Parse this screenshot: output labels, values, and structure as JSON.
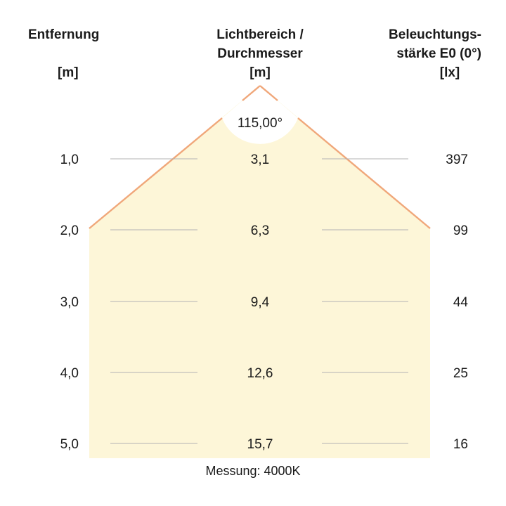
{
  "headers": {
    "distance": {
      "line1": "Entfernung",
      "unit": "[m]"
    },
    "beam": {
      "line1": "Lichtbereich /",
      "line2": "Durchmesser",
      "unit": "[m]"
    },
    "illuminance": {
      "line1": "Beleuchtungs-",
      "line2": "stärke E0 (0°)",
      "unit": "[lx]"
    }
  },
  "angle_label": "115,00°",
  "rows": [
    {
      "distance": "1,0",
      "diameter": "3,1",
      "lux": "397"
    },
    {
      "distance": "2,0",
      "diameter": "6,3",
      "lux": "99"
    },
    {
      "distance": "3,0",
      "diameter": "9,4",
      "lux": "44"
    },
    {
      "distance": "4,0",
      "diameter": "12,6",
      "lux": "25"
    },
    {
      "distance": "5,0",
      "diameter": "15,7",
      "lux": "16"
    }
  ],
  "footer": "Messung: 4000K",
  "colors": {
    "beam_fill": "#fdf6d8",
    "beam_edge": "#f0a77a",
    "grid_line": "#b3b3b3"
  }
}
